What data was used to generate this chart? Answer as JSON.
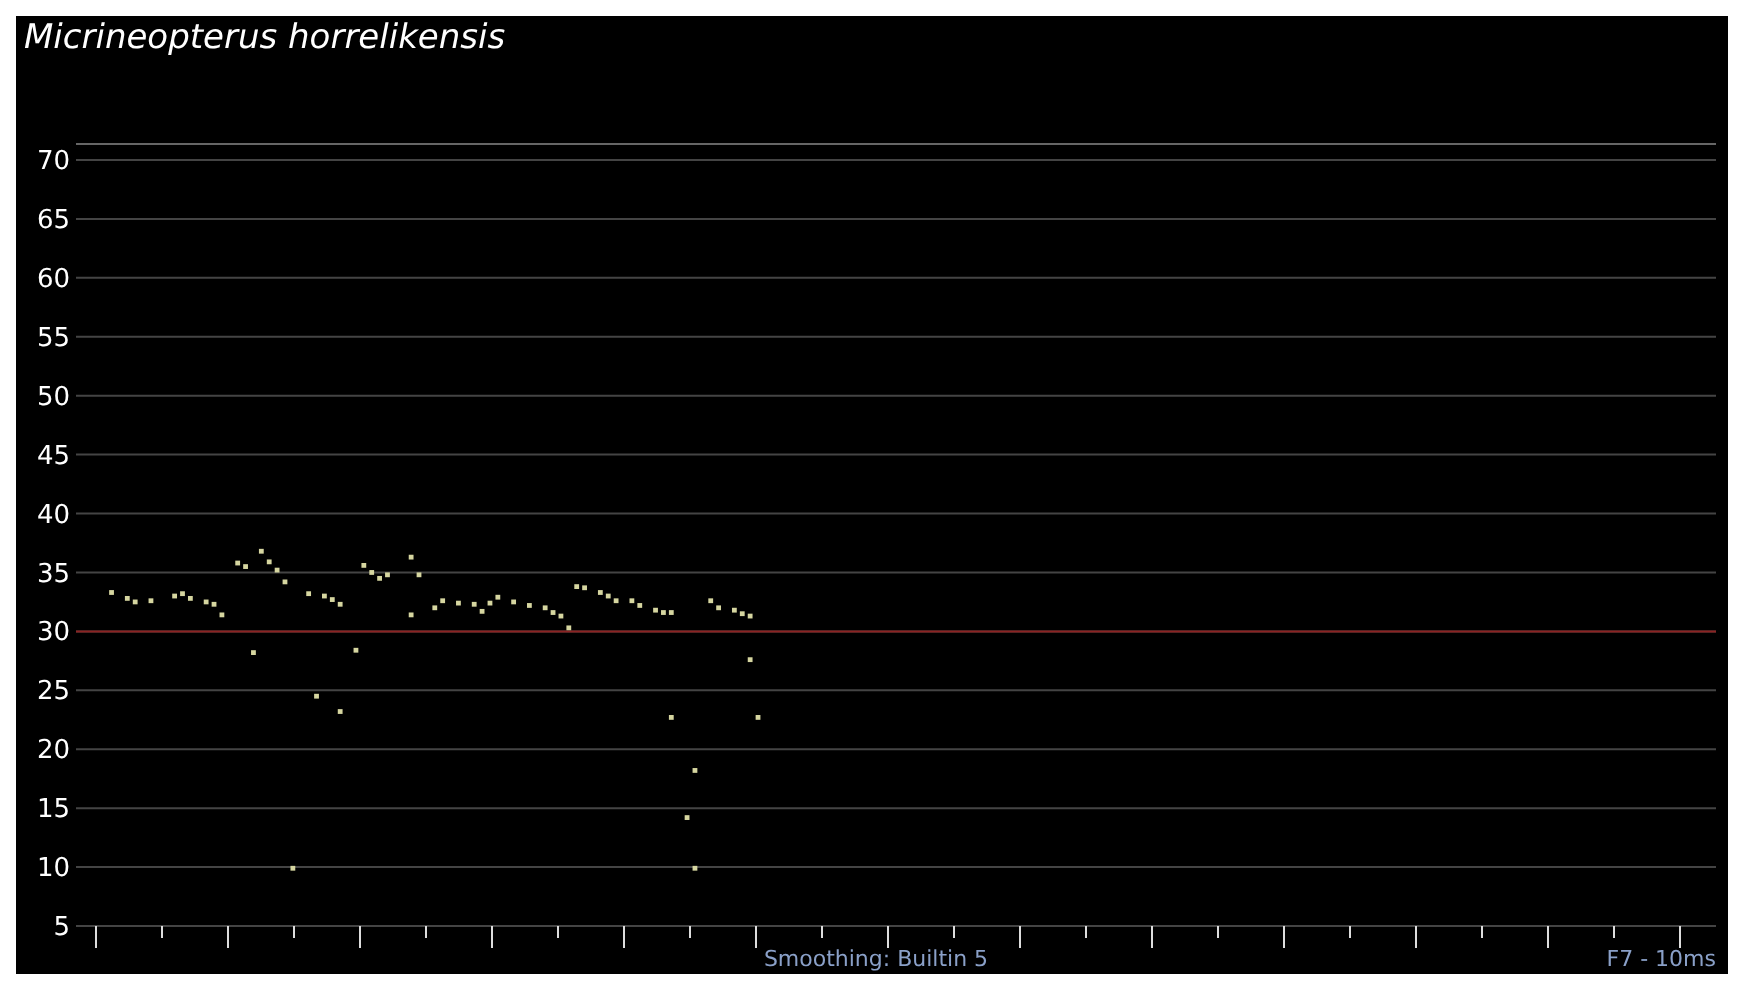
{
  "chart_data": {
    "type": "scatter",
    "title": "Micrineopterus horrelikensis",
    "ylim": [
      5,
      70
    ],
    "yticks": [
      5,
      10,
      15,
      20,
      25,
      30,
      35,
      40,
      45,
      50,
      55,
      60,
      65,
      70
    ],
    "grid": "y",
    "tick_labels": "y",
    "marker": "square",
    "annotations": [
      "Smoothing: Builtin 5",
      "F7 - 10ms"
    ],
    "ref_lines": [
      {
        "axis": "y",
        "value": 30,
        "color": "#8b2323"
      }
    ],
    "categories": [
      null,
      null,
      null,
      null,
      null,
      null,
      null,
      null,
      null,
      null,
      null,
      null,
      null,
      null,
      null,
      null,
      null,
      null,
      null,
      null,
      null,
      null,
      null,
      null,
      null,
      null,
      null,
      null,
      null,
      null,
      null,
      null,
      null,
      null,
      null,
      null,
      null,
      null,
      null,
      null,
      null,
      null,
      null,
      null,
      null,
      null,
      null,
      null,
      null,
      null,
      null,
      null,
      null,
      null,
      null,
      null,
      null,
      null,
      null,
      null,
      null,
      null,
      null,
      null,
      null,
      null,
      null,
      null,
      null,
      null,
      null,
      null,
      null,
      null,
      null,
      null,
      null,
      null,
      null,
      null,
      null,
      null,
      null,
      null,
      null,
      null,
      null,
      null,
      null,
      null,
      null,
      null,
      null,
      null,
      null,
      null,
      null,
      null,
      null,
      null,
      null,
      null,
      null,
      null,
      null,
      null,
      null,
      null,
      null,
      null,
      null,
      null,
      null,
      null,
      null,
      null,
      null,
      null,
      null,
      null,
      null,
      null,
      null,
      null,
      null,
      null,
      null,
      null,
      null,
      null,
      null,
      null,
      null,
      null,
      null,
      null,
      null,
      null,
      null,
      null,
      null,
      null,
      null,
      null,
      null,
      null,
      null,
      null,
      null,
      null,
      null,
      null,
      null,
      null,
      null,
      null,
      null,
      null,
      null,
      null,
      null,
      null,
      null,
      null,
      null,
      null,
      null,
      null,
      null,
      null,
      null,
      null,
      null,
      null,
      null,
      null,
      null,
      null,
      null,
      null,
      null,
      null,
      null,
      null,
      null,
      null,
      null,
      null,
      null,
      null,
      null,
      null,
      null,
      null,
      null,
      null,
      null,
      null,
      null,
      null,
      null,
      null,
      null,
      null,
      null,
      null,
      null,
      null
    ],
    "series": [
      {
        "color": "#d6d6a0",
        "values": [
          null,
          null,
          null,
          null,
          33.3,
          null,
          32.8,
          32.5,
          null,
          32.6,
          null,
          null,
          33.0,
          33.2,
          32.8,
          null,
          32.5,
          32.3,
          31.4,
          null,
          35.8,
          35.5,
          null,
          36.8,
          35.9,
          35.2,
          34.2,
          null,
          null,
          33.2,
          null,
          33.0,
          32.7,
          32.3,
          null,
          null,
          35.6,
          35.0,
          34.5,
          34.8,
          null,
          null,
          36.3,
          34.8,
          null,
          32.0,
          32.6,
          null,
          32.4,
          null,
          32.3,
          31.7,
          32.4,
          32.9,
          null,
          32.5,
          null,
          32.2,
          null,
          32.0,
          31.6,
          31.3,
          30.3,
          33.8,
          33.7,
          null,
          33.3,
          33.0,
          32.6,
          null,
          32.6,
          32.2,
          null,
          31.8,
          31.6,
          31.6,
          null,
          null,
          9.9,
          null,
          32.6,
          32.0,
          null,
          31.8,
          31.5,
          31.3,
          null,
          null,
          null,
          null,
          null,
          null,
          null,
          null,
          null,
          null,
          null,
          null,
          null,
          null,
          null,
          null,
          null,
          null,
          null,
          null,
          null,
          null,
          null,
          null,
          null,
          null,
          null,
          null,
          null,
          null,
          null,
          null,
          null,
          null,
          null,
          null,
          null,
          null,
          null,
          null,
          null,
          null,
          null,
          null,
          null,
          null,
          null,
          null,
          null,
          null,
          null,
          null,
          null,
          null,
          null,
          null,
          null,
          null,
          null,
          null,
          null,
          null,
          null,
          null,
          null,
          null,
          null,
          null,
          null,
          null,
          null,
          null,
          null,
          null,
          null,
          null,
          null,
          null,
          null,
          null,
          null,
          null,
          null,
          null,
          null,
          null,
          null,
          null,
          null,
          null,
          null,
          null,
          null,
          null,
          null,
          null,
          null,
          null,
          null,
          null,
          null,
          null,
          null,
          null,
          null,
          null,
          null,
          null,
          null,
          null,
          null,
          null,
          null,
          null,
          null,
          null,
          null,
          null,
          null,
          null,
          null,
          null
        ]
      },
      {
        "color": "#d6d6a0",
        "values": [
          null,
          null,
          null,
          null,
          null,
          null,
          null,
          null,
          null,
          null,
          null,
          null,
          null,
          null,
          null,
          null,
          null,
          null,
          null,
          null,
          null,
          null,
          28.2,
          null,
          null,
          null,
          null,
          9.9,
          null,
          null,
          24.5,
          null,
          null,
          23.2,
          null,
          28.4,
          null,
          null,
          null,
          null,
          null,
          null,
          31.4,
          null,
          null,
          null,
          null,
          null,
          null,
          null,
          null,
          null,
          null,
          null,
          null,
          null,
          null,
          null,
          null,
          null,
          null,
          null,
          null,
          null,
          null,
          null,
          null,
          null,
          null,
          null,
          null,
          null,
          null,
          null,
          null,
          22.7,
          null,
          14.2,
          18.2,
          null,
          null,
          null,
          null,
          null,
          null,
          27.6,
          22.7,
          null,
          null,
          null,
          null,
          null,
          null,
          null,
          null,
          null,
          null,
          null,
          null,
          null,
          null,
          null,
          null,
          null,
          null,
          null,
          null,
          null,
          null,
          null,
          null,
          null,
          null,
          null,
          null,
          null,
          null,
          null,
          null,
          null,
          null,
          null,
          null,
          null,
          null,
          null,
          null,
          null,
          null,
          null,
          null,
          null,
          null,
          null,
          null,
          null,
          null,
          null,
          null,
          null,
          null,
          null,
          null,
          null,
          null,
          null,
          null,
          null,
          null,
          null,
          null,
          null,
          null,
          null,
          null,
          null,
          null,
          null,
          null,
          null,
          null,
          null,
          null,
          null,
          null,
          null,
          null,
          null,
          null,
          null,
          null,
          null,
          null,
          null,
          null,
          null,
          null,
          null,
          null,
          null,
          null,
          null,
          null,
          null,
          null,
          null,
          null,
          null,
          null,
          null,
          null,
          null,
          null,
          null,
          null,
          null,
          null,
          null,
          null,
          null,
          null,
          null,
          null,
          null,
          null,
          null,
          null,
          null
        ]
      }
    ]
  }
}
